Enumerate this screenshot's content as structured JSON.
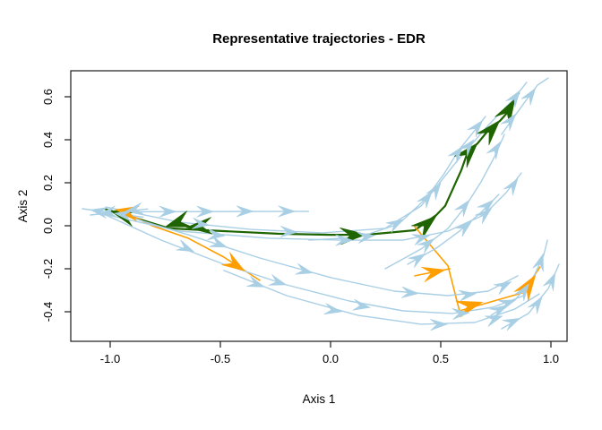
{
  "title": "Representative trajectories - EDR",
  "axes": {
    "xlabel": "Axis 1",
    "ylabel": "Axis 2",
    "x_tick_labels": [
      "-1.0",
      "-0.5",
      "0.0",
      "0.5",
      "1.0"
    ],
    "x_tick_values": [
      -1.0,
      -0.5,
      0.0,
      0.5,
      1.0
    ],
    "y_tick_labels": [
      "-0.4",
      "-0.2",
      "0.0",
      "0.2",
      "0.4",
      "0.6"
    ],
    "y_tick_values": [
      -0.4,
      -0.2,
      0.0,
      0.2,
      0.4,
      0.6
    ],
    "xlim": [
      -1.18,
      1.07
    ],
    "ylim": [
      -0.53,
      0.72
    ]
  },
  "colors": {
    "trajectory_blue": "#a9cfe5",
    "representative_green": "#1e6400",
    "representative_orange": "#ff9e00",
    "axis_black": "#1a1a1a"
  },
  "chart_data": {
    "type": "line",
    "title": "Representative trajectories - EDR",
    "xlabel": "Axis 1",
    "ylabel": "Axis 2",
    "xlim": [
      -1.18,
      1.07
    ],
    "ylim": [
      -0.53,
      0.72
    ],
    "grid": false,
    "legend": "none",
    "series": [
      {
        "name": "rep-green-main",
        "role": "representative",
        "color": "representative_green",
        "width": 2.2,
        "arrow_size": 1.3,
        "points": [
          [
            -1.028,
            0.079
          ],
          [
            -0.89,
            0.037
          ],
          [
            -0.732,
            -0.012
          ],
          [
            -0.484,
            -0.025
          ],
          [
            -0.24,
            -0.037
          ],
          [
            0.0,
            -0.042
          ],
          [
            0.159,
            -0.042
          ],
          [
            0.382,
            -0.021
          ],
          [
            0.48,
            0.05
          ],
          [
            0.52,
            0.092
          ],
          [
            0.593,
            0.258
          ],
          [
            0.622,
            0.342
          ],
          [
            0.667,
            0.383
          ],
          [
            0.724,
            0.454
          ],
          [
            0.768,
            0.487
          ],
          [
            0.805,
            0.529
          ],
          [
            0.837,
            0.587
          ],
          [
            0.854,
            0.617
          ]
        ],
        "arrows": [
          {
            "x": -1.0,
            "y": 0.07,
            "angle": 163
          },
          {
            "x": -0.75,
            "y": -0.005,
            "angle": 198
          },
          {
            "x": -0.655,
            "y": -0.008,
            "angle": 184
          },
          {
            "x": 0.16,
            "y": -0.04,
            "angle": 4
          },
          {
            "x": 0.48,
            "y": 0.046,
            "angle": 40
          },
          {
            "x": 0.667,
            "y": 0.385,
            "angle": 48
          },
          {
            "x": 0.768,
            "y": 0.49,
            "angle": 48
          },
          {
            "x": 0.837,
            "y": 0.59,
            "angle": 60
          }
        ]
      },
      {
        "name": "rep-orange-left",
        "role": "representative",
        "color": "representative_orange",
        "width": 1.6,
        "arrow_size": 1.15,
        "points": [
          [
            -0.951,
            0.071
          ],
          [
            -0.809,
            0.0
          ],
          [
            -0.646,
            -0.058
          ],
          [
            -0.484,
            -0.146
          ],
          [
            -0.321,
            -0.254
          ]
        ],
        "arrows": [
          {
            "x": -0.976,
            "y": 0.075,
            "angle": 170
          },
          {
            "x": -0.39,
            "y": -0.21,
            "angle": -33
          }
        ]
      },
      {
        "name": "rep-orange-stub",
        "role": "representative",
        "color": "representative_orange",
        "width": 1.6,
        "arrow_size": 1.15,
        "points": [
          [
            0.382,
            -0.233
          ],
          [
            0.541,
            -0.2
          ]
        ],
        "arrows": [
          {
            "x": 0.52,
            "y": -0.205,
            "angle": 12
          }
        ]
      },
      {
        "name": "rep-orange-branch",
        "role": "representative",
        "color": "representative_orange",
        "width": 1.6,
        "arrow_size": 1.3,
        "points": [
          [
            0.382,
            -0.004
          ],
          [
            0.533,
            -0.187
          ],
          [
            0.585,
            -0.396
          ],
          [
            0.87,
            -0.312
          ],
          [
            0.951,
            -0.192
          ]
        ],
        "arrows": [
          {
            "x": 0.69,
            "y": -0.355,
            "angle": 16
          },
          {
            "x": 0.93,
            "y": -0.23,
            "angle": 56
          }
        ]
      },
      {
        "name": "blue-cluster-1",
        "role": "trajectory",
        "color": "trajectory_blue",
        "width": 1.4,
        "arrow_size": 1,
        "points": [
          [
            -0.85,
            0.04
          ],
          [
            -1.126,
            0.079
          ]
        ],
        "arrows": [
          {
            "x": -1.09,
            "y": 0.074,
            "angle": 170
          },
          {
            "x": -0.98,
            "y": 0.058,
            "angle": 172
          }
        ]
      },
      {
        "name": "blue-cluster-2",
        "role": "trajectory",
        "color": "trajectory_blue",
        "width": 1.4,
        "arrow_size": 1,
        "points": [
          [
            -0.83,
            0.078
          ],
          [
            -1.09,
            0.05
          ]
        ],
        "arrows": [
          {
            "x": -1.05,
            "y": 0.053,
            "angle": 190
          },
          {
            "x": -0.93,
            "y": 0.068,
            "angle": 190
          }
        ]
      },
      {
        "name": "blue-horizontal",
        "role": "trajectory",
        "color": "trajectory_blue",
        "width": 1.4,
        "arrow_size": 1,
        "points": [
          [
            -0.93,
            0.065
          ],
          [
            -0.1,
            0.067
          ]
        ],
        "arrows": [
          {
            "x": -0.7,
            "y": 0.066,
            "angle": 0
          },
          {
            "x": -0.53,
            "y": 0.066,
            "angle": 0
          },
          {
            "x": -0.35,
            "y": 0.067,
            "angle": 0
          },
          {
            "x": -0.16,
            "y": 0.067,
            "angle": 0
          }
        ]
      },
      {
        "name": "blue-upper-riser",
        "role": "trajectory",
        "color": "trajectory_blue",
        "width": 1.4,
        "arrow_size": 1,
        "points": [
          [
            -1.02,
            0.087
          ],
          [
            -0.687,
            0.017
          ],
          [
            -0.362,
            -0.017
          ],
          [
            -0.037,
            -0.033
          ],
          [
            0.248,
            -0.012
          ],
          [
            0.411,
            0.092
          ],
          [
            0.573,
            0.3
          ],
          [
            0.715,
            0.467
          ],
          [
            0.825,
            0.583
          ],
          [
            0.89,
            0.667
          ]
        ],
        "arrows": [
          {
            "x": -0.55,
            "y": 0.003,
            "angle": -6
          },
          {
            "x": -0.15,
            "y": -0.03,
            "angle": -2
          },
          {
            "x": 0.33,
            "y": 0.03,
            "angle": 30
          },
          {
            "x": 0.5,
            "y": 0.2,
            "angle": 55
          },
          {
            "x": 0.65,
            "y": 0.4,
            "angle": 50
          },
          {
            "x": 0.86,
            "y": 0.63,
            "angle": 55
          }
        ]
      },
      {
        "name": "blue-left-of-green-riser",
        "role": "trajectory",
        "color": "trajectory_blue",
        "width": 1.4,
        "arrow_size": 1,
        "points": [
          [
            -0.098,
            -0.067
          ],
          [
            0.126,
            -0.054
          ],
          [
            0.309,
            0.008
          ],
          [
            0.431,
            0.125
          ],
          [
            0.512,
            0.237
          ],
          [
            0.581,
            0.35
          ],
          [
            0.646,
            0.433
          ],
          [
            0.703,
            0.508
          ]
        ],
        "arrows": [
          {
            "x": 0.2,
            "y": -0.045,
            "angle": 8
          },
          {
            "x": 0.46,
            "y": 0.16,
            "angle": 53
          },
          {
            "x": 0.6,
            "y": 0.37,
            "angle": 52
          },
          {
            "x": 0.69,
            "y": 0.49,
            "angle": 50
          }
        ]
      },
      {
        "name": "blue-mid-horizontal",
        "role": "trajectory",
        "color": "trajectory_blue",
        "width": 1.4,
        "arrow_size": 1,
        "points": [
          [
            -1.012,
            0.05
          ],
          [
            -0.687,
            -0.025
          ],
          [
            -0.28,
            -0.058
          ],
          [
            0.045,
            -0.067
          ],
          [
            0.329,
            -0.067
          ],
          [
            0.533,
            -0.025
          ],
          [
            0.695,
            0.05
          ],
          [
            0.797,
            0.154
          ],
          [
            0.866,
            0.246
          ]
        ],
        "arrows": [
          {
            "x": -0.48,
            "y": -0.047,
            "angle": -5
          },
          {
            "x": 0.1,
            "y": -0.067,
            "angle": 0
          },
          {
            "x": 0.45,
            "y": -0.045,
            "angle": 15
          },
          {
            "x": 0.73,
            "y": 0.08,
            "angle": 40
          },
          {
            "x": 0.85,
            "y": 0.22,
            "angle": 55
          }
        ]
      },
      {
        "name": "blue-right-of-green-riser",
        "role": "trajectory",
        "color": "trajectory_blue",
        "width": 1.4,
        "arrow_size": 1,
        "points": [
          [
            0.248,
            -0.2
          ],
          [
            0.411,
            -0.108
          ],
          [
            0.533,
            -0.012
          ],
          [
            0.614,
            0.092
          ],
          [
            0.683,
            0.204
          ],
          [
            0.744,
            0.321
          ],
          [
            0.789,
            0.425
          ]
        ],
        "arrows": [
          {
            "x": 0.47,
            "y": -0.06,
            "angle": 38
          },
          {
            "x": 0.63,
            "y": 0.12,
            "angle": 52
          },
          {
            "x": 0.77,
            "y": 0.39,
            "angle": 58
          }
        ]
      },
      {
        "name": "blue-lower-diagonal-1",
        "role": "trajectory",
        "color": "trajectory_blue",
        "width": 1.4,
        "arrow_size": 1,
        "points": [
          [
            -1.02,
            0.05
          ],
          [
            -0.768,
            -0.067
          ],
          [
            -0.484,
            -0.179
          ],
          [
            -0.199,
            -0.275
          ],
          [
            0.085,
            -0.35
          ],
          [
            0.329,
            -0.396
          ],
          [
            0.553,
            -0.408
          ],
          [
            0.736,
            -0.379
          ],
          [
            0.878,
            -0.325
          ]
        ],
        "arrows": [
          {
            "x": -0.62,
            "y": -0.12,
            "angle": -23
          },
          {
            "x": -0.2,
            "y": -0.275,
            "angle": -17
          },
          {
            "x": 0.18,
            "y": -0.38,
            "angle": -9
          },
          {
            "x": 0.63,
            "y": -0.405,
            "angle": 4
          },
          {
            "x": 0.84,
            "y": -0.345,
            "angle": 20
          }
        ]
      },
      {
        "name": "blue-lower-diagonal-2",
        "role": "trajectory",
        "color": "trajectory_blue",
        "width": 1.4,
        "arrow_size": 1,
        "points": [
          [
            -0.971,
            0.058
          ],
          [
            -0.646,
            -0.042
          ],
          [
            -0.321,
            -0.15
          ],
          [
            0.004,
            -0.242
          ],
          [
            0.289,
            -0.304
          ],
          [
            0.533,
            -0.325
          ],
          [
            0.715,
            -0.304
          ],
          [
            0.85,
            -0.233
          ]
        ],
        "arrows": [
          {
            "x": -0.47,
            "y": -0.1,
            "angle": -20
          },
          {
            "x": -0.08,
            "y": -0.22,
            "angle": -14
          },
          {
            "x": 0.4,
            "y": -0.315,
            "angle": -4
          },
          {
            "x": 0.66,
            "y": -0.315,
            "angle": 8
          },
          {
            "x": 0.82,
            "y": -0.26,
            "angle": 28
          }
        ]
      },
      {
        "name": "blue-bottom-curve",
        "role": "trajectory",
        "color": "trajectory_blue",
        "width": 1.4,
        "arrow_size": 1,
        "points": [
          [
            -0.484,
            -0.208
          ],
          [
            -0.199,
            -0.325
          ],
          [
            0.126,
            -0.417
          ],
          [
            0.411,
            -0.458
          ],
          [
            0.654,
            -0.45
          ],
          [
            0.837,
            -0.387
          ],
          [
            0.947,
            -0.317
          ]
        ],
        "arrows": [
          {
            "x": -0.3,
            "y": -0.285,
            "angle": -20
          },
          {
            "x": 0.05,
            "y": -0.4,
            "angle": -10
          },
          {
            "x": 0.53,
            "y": -0.458,
            "angle": 2
          },
          {
            "x": 0.78,
            "y": -0.42,
            "angle": 18
          }
        ]
      },
      {
        "name": "blue-right-edge-riser-1",
        "role": "trajectory",
        "color": "trajectory_blue",
        "width": 1.4,
        "arrow_size": 1,
        "points": [
          [
            0.728,
            -0.417
          ],
          [
            0.837,
            -0.346
          ],
          [
            0.919,
            -0.242
          ],
          [
            0.967,
            -0.137
          ],
          [
            0.984,
            -0.067
          ]
        ],
        "arrows": [
          {
            "x": 0.8,
            "y": -0.37,
            "angle": 30
          },
          {
            "x": 0.9,
            "y": -0.27,
            "angle": 55
          },
          {
            "x": 0.965,
            "y": -0.13,
            "angle": 72
          }
        ]
      },
      {
        "name": "blue-right-edge-riser-2",
        "role": "trajectory",
        "color": "trajectory_blue",
        "width": 1.4,
        "arrow_size": 1,
        "points": [
          [
            0.776,
            -0.479
          ],
          [
            0.898,
            -0.408
          ],
          [
            0.988,
            -0.292
          ],
          [
            1.037,
            -0.179
          ]
        ],
        "arrows": [
          {
            "x": 0.86,
            "y": -0.43,
            "angle": 25
          },
          {
            "x": 0.96,
            "y": -0.33,
            "angle": 55
          },
          {
            "x": 1.02,
            "y": -0.22,
            "angle": 65
          }
        ]
      },
      {
        "name": "blue-midright-riser",
        "role": "trajectory",
        "color": "trajectory_blue",
        "width": 1.4,
        "arrow_size": 1,
        "points": [
          [
            0.35,
            -0.179
          ],
          [
            0.48,
            -0.104
          ],
          [
            0.585,
            -0.025
          ],
          [
            0.683,
            0.062
          ],
          [
            0.764,
            0.146
          ]
        ],
        "arrows": [
          {
            "x": 0.43,
            "y": -0.13,
            "angle": 33
          },
          {
            "x": 0.64,
            "y": 0.02,
            "angle": 40
          },
          {
            "x": 0.74,
            "y": 0.12,
            "angle": 42
          }
        ]
      },
      {
        "name": "blue-top-corner",
        "role": "trajectory",
        "color": "trajectory_blue",
        "width": 1.4,
        "arrow_size": 1,
        "points": [
          [
            0.776,
            0.425
          ],
          [
            0.878,
            0.571
          ],
          [
            0.939,
            0.654
          ],
          [
            0.988,
            0.687
          ]
        ],
        "arrows": [
          {
            "x": 0.84,
            "y": 0.52,
            "angle": 52
          },
          {
            "x": 0.93,
            "y": 0.64,
            "angle": 55
          }
        ]
      }
    ]
  }
}
